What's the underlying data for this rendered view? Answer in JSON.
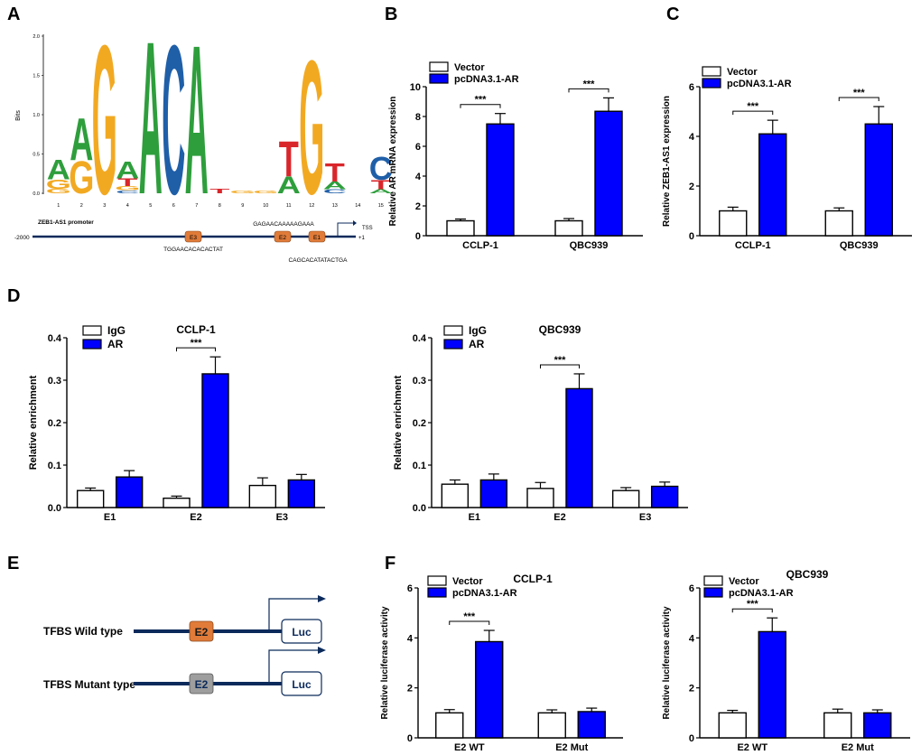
{
  "panel_labels": {
    "A": "A",
    "B": "B",
    "C": "C",
    "D": "D",
    "E": "E",
    "F": "F"
  },
  "colors": {
    "ar_blue": "#0000FF",
    "bar_outline": "#000000",
    "vector_white": "#FFFFFF",
    "navy_line": "#0B2A5B",
    "logo_A": "#2E9E3C",
    "logo_G": "#F2A922",
    "logo_C": "#1F5FA8",
    "logo_T": "#D9262B",
    "e_box": "#E07B39",
    "e2_mut_box": "#9E9E9E"
  },
  "panel_a": {
    "y_label": "Bits",
    "y_ticks": [
      "0.0",
      "0.5",
      "1.0",
      "1.5",
      "2.0"
    ],
    "positions": [
      "1",
      "2",
      "3",
      "4",
      "5",
      "6",
      "7",
      "8",
      "9",
      "10",
      "11",
      "12",
      "13",
      "14",
      "15"
    ],
    "letters": [
      {
        "pos": 1,
        "stack": [
          {
            "l": "G",
            "h": 0.06
          },
          {
            "l": "G",
            "h": 0.12
          },
          {
            "l": "A",
            "h": 0.26
          }
        ]
      },
      {
        "pos": 2,
        "stack": [
          {
            "l": "G",
            "h": 0.42
          },
          {
            "l": "A",
            "h": 0.55
          }
        ]
      },
      {
        "pos": 3,
        "stack": [
          {
            "l": "G",
            "h": 1.95
          }
        ]
      },
      {
        "pos": 4,
        "stack": [
          {
            "l": "C",
            "h": 0.04
          },
          {
            "l": "G",
            "h": 0.05
          },
          {
            "l": "T",
            "h": 0.1
          },
          {
            "l": "A",
            "h": 0.22
          }
        ]
      },
      {
        "pos": 5,
        "stack": [
          {
            "l": "A",
            "h": 2.0
          }
        ]
      },
      {
        "pos": 6,
        "stack": [
          {
            "l": "C",
            "h": 1.95
          }
        ]
      },
      {
        "pos": 7,
        "stack": [
          {
            "l": "A",
            "h": 1.95
          }
        ]
      },
      {
        "pos": 8,
        "stack": [
          {
            "l": "T",
            "h": 0.06
          }
        ]
      },
      {
        "pos": 9,
        "stack": [
          {
            "l": "G",
            "h": 0.04
          }
        ]
      },
      {
        "pos": 10,
        "stack": [
          {
            "l": "G",
            "h": 0.04
          }
        ]
      },
      {
        "pos": 11,
        "stack": [
          {
            "l": "A",
            "h": 0.22
          },
          {
            "l": "T",
            "h": 0.46
          }
        ]
      },
      {
        "pos": 12,
        "stack": [
          {
            "l": "G",
            "h": 1.75
          }
        ]
      },
      {
        "pos": 13,
        "stack": [
          {
            "l": "C",
            "h": 0.05
          },
          {
            "l": "A",
            "h": 0.1
          },
          {
            "l": "T",
            "h": 0.24
          }
        ]
      },
      {
        "pos": 14,
        "stack": []
      },
      {
        "pos": 15,
        "stack": [
          {
            "l": "A",
            "h": 0.05
          },
          {
            "l": "T",
            "h": 0.12
          },
          {
            "l": "C",
            "h": 0.3
          }
        ]
      }
    ],
    "promoter_label": "ZEB1-AS1 promoter",
    "start_label": "-2000",
    "tss_label": "TSS",
    "plus_one_label": "+1",
    "elements": [
      {
        "name": "E3",
        "seq": "TGGAACACACACTAT"
      },
      {
        "name": "E2",
        "seq": "GAGAACAAAAAGAAA"
      },
      {
        "name": "E1",
        "seq": "CAGCACATATACTGA"
      }
    ]
  },
  "panel_e": {
    "wild_label": "TFBS Wild type",
    "mutant_label": "TFBS Mutant type",
    "box_label": "E2",
    "luc_label": "Luc"
  },
  "chart_data": [
    {
      "id": "B",
      "type": "bar",
      "categories": [
        "CCLP-1",
        "QBC939"
      ],
      "series": [
        {
          "name": "Vector",
          "values": [
            1.0,
            1.0
          ],
          "errors": [
            0.12,
            0.15
          ]
        },
        {
          "name": "pcDNA3.1-AR",
          "values": [
            7.5,
            8.35
          ],
          "errors": [
            0.7,
            0.9
          ]
        }
      ],
      "ylabel": "Relative AR mRNA expression",
      "ylim": [
        0,
        10
      ],
      "yticks": [
        0,
        2,
        4,
        6,
        8,
        10
      ],
      "significance": [
        "***",
        "***"
      ]
    },
    {
      "id": "C",
      "type": "bar",
      "categories": [
        "CCLP-1",
        "QBC939"
      ],
      "series": [
        {
          "name": "Vector",
          "values": [
            1.0,
            1.0
          ],
          "errors": [
            0.15,
            0.12
          ]
        },
        {
          "name": "pcDNA3.1-AR",
          "values": [
            4.1,
            4.5
          ],
          "errors": [
            0.55,
            0.7
          ]
        }
      ],
      "ylabel": "Relative ZEB1-AS1 expression",
      "ylim": [
        0,
        6
      ],
      "yticks": [
        0,
        2,
        4,
        6
      ],
      "significance": [
        "***",
        "***"
      ]
    },
    {
      "id": "D1",
      "type": "bar",
      "title": "CCLP-1",
      "categories": [
        "E1",
        "E2",
        "E3"
      ],
      "series": [
        {
          "name": "IgG",
          "values": [
            0.04,
            0.022,
            0.052
          ],
          "errors": [
            0.006,
            0.005,
            0.018
          ]
        },
        {
          "name": "AR",
          "values": [
            0.072,
            0.315,
            0.065
          ],
          "errors": [
            0.015,
            0.04,
            0.013
          ]
        }
      ],
      "ylabel": "Relative enrichment",
      "ylim": [
        0,
        0.4
      ],
      "yticks": [
        "0.0",
        "0.1",
        "0.2",
        "0.3",
        "0.4"
      ],
      "significance": [
        "",
        "***",
        ""
      ]
    },
    {
      "id": "D2",
      "type": "bar",
      "title": "QBC939",
      "categories": [
        "E1",
        "E2",
        "E3"
      ],
      "series": [
        {
          "name": "IgG",
          "values": [
            0.055,
            0.045,
            0.04
          ],
          "errors": [
            0.01,
            0.014,
            0.007
          ]
        },
        {
          "name": "AR",
          "values": [
            0.065,
            0.28,
            0.05
          ],
          "errors": [
            0.014,
            0.035,
            0.01
          ]
        }
      ],
      "ylabel": "Relative enrichment",
      "ylim": [
        0,
        0.4
      ],
      "yticks": [
        "0.0",
        "0.1",
        "0.2",
        "0.3",
        "0.4"
      ],
      "significance": [
        "",
        "***",
        ""
      ]
    },
    {
      "id": "F1",
      "type": "bar",
      "title": "CCLP-1",
      "categories": [
        "E2 WT",
        "E2 Mut"
      ],
      "series": [
        {
          "name": "Vector",
          "values": [
            1.0,
            1.0
          ],
          "errors": [
            0.13,
            0.12
          ]
        },
        {
          "name": "pcDNA3.1-AR",
          "values": [
            3.85,
            1.05
          ],
          "errors": [
            0.45,
            0.14
          ]
        }
      ],
      "ylabel": "Relative luciferase activity",
      "ylim": [
        0,
        6
      ],
      "yticks": [
        0,
        2,
        4,
        6
      ],
      "significance": [
        "***",
        ""
      ]
    },
    {
      "id": "F2",
      "type": "bar",
      "title": "QBC939",
      "categories": [
        "E2 WT",
        "E2 Mut"
      ],
      "series": [
        {
          "name": "Vector",
          "values": [
            1.0,
            1.0
          ],
          "errors": [
            0.1,
            0.15
          ]
        },
        {
          "name": "pcDNA3.1-AR",
          "values": [
            4.25,
            1.0
          ],
          "errors": [
            0.55,
            0.12
          ]
        }
      ],
      "ylabel": "Relative luciferase activity",
      "ylim": [
        0,
        6
      ],
      "yticks": [
        0,
        2,
        4,
        6
      ],
      "significance": [
        "***",
        ""
      ]
    }
  ]
}
